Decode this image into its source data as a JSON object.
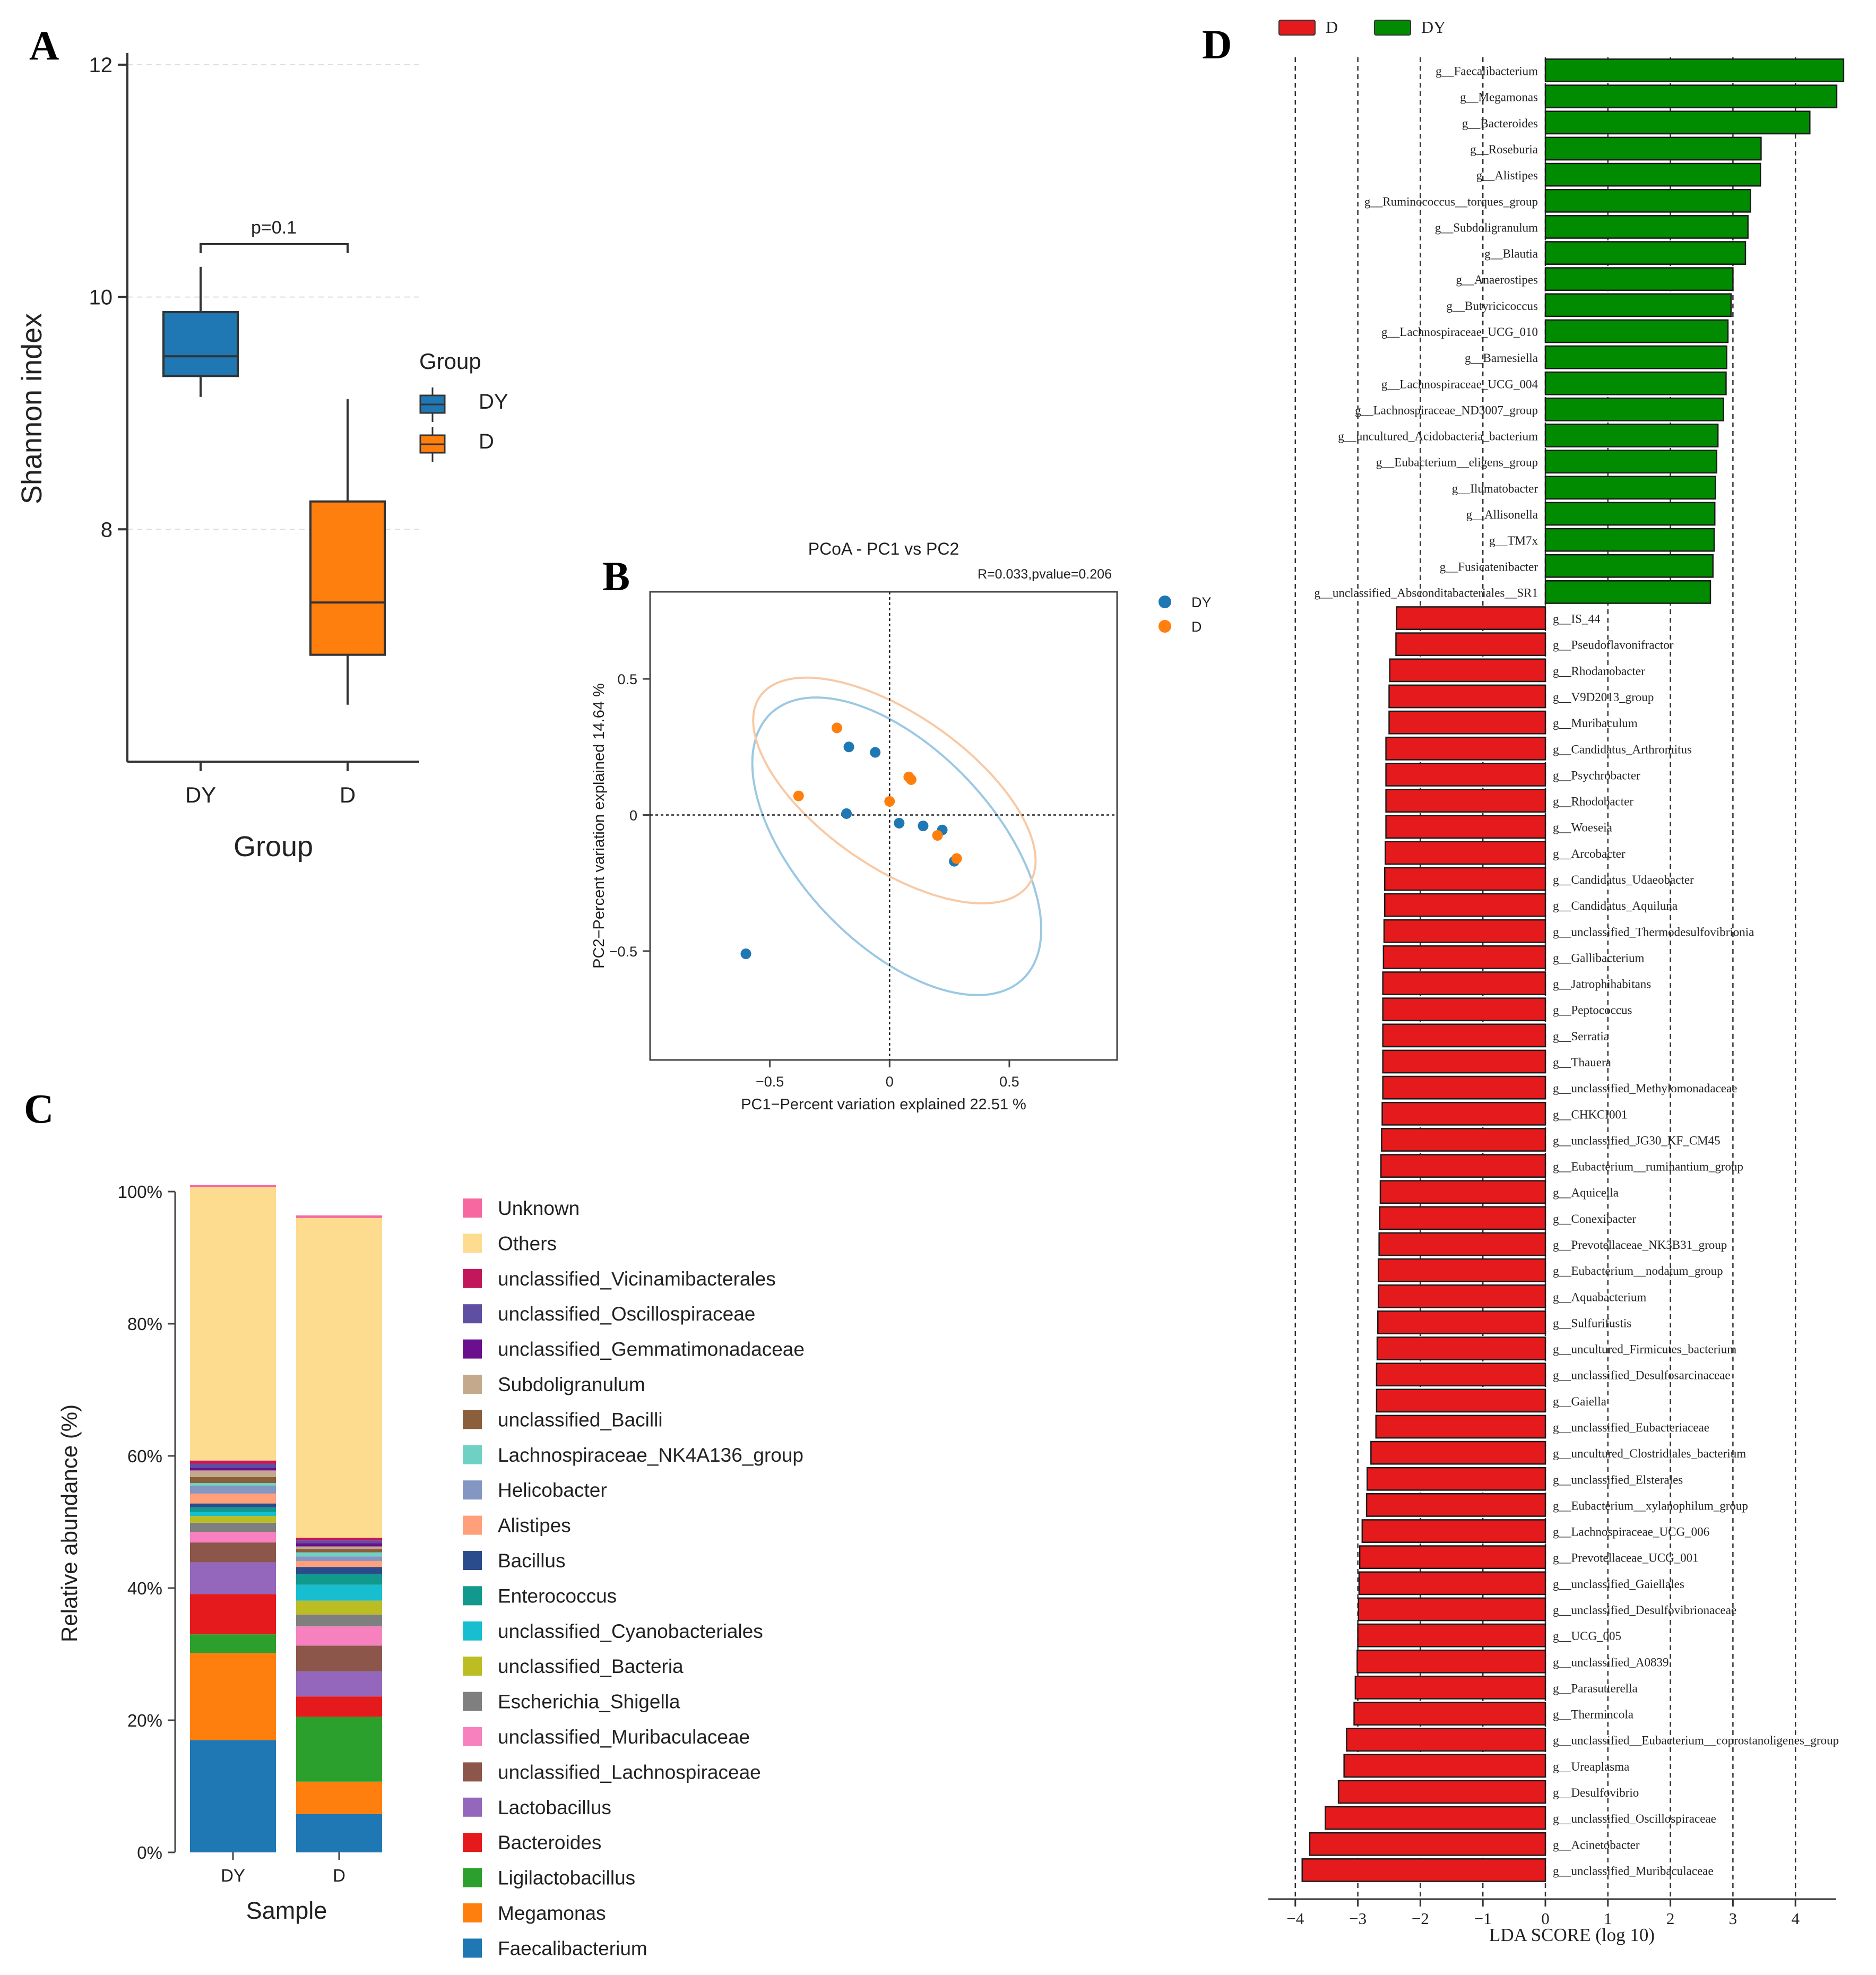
{
  "figure": {
    "panel_labels": [
      "A",
      "B",
      "C",
      "D"
    ]
  },
  "colors": {
    "DY": "#1f77b4",
    "D": "#ff7f0e",
    "lda_D": "#e41a1c",
    "lda_DY": "#008b00",
    "ellipse_DY": "#9cc8e3",
    "ellipse_D": "#f8c9a4"
  },
  "chart_data": [
    {
      "panel": "A",
      "type": "box",
      "ylabel": "Shannon index",
      "xlabel": "Group",
      "ylim": [
        6.0,
        12.1
      ],
      "yticks": [
        "8",
        "10",
        "12"
      ],
      "grid": "horizontal dashed",
      "categories": [
        "DY",
        "D"
      ],
      "legend_title": "Group",
      "legend_labels": [
        "DY",
        "D"
      ],
      "boxes": [
        {
          "group": "DY",
          "whisker_low": 9.14,
          "q1": 9.32,
          "median": 9.49,
          "q3": 9.87,
          "whisker_high": 10.26
        },
        {
          "group": "D",
          "whisker_low": 6.49,
          "q1": 6.92,
          "median": 7.37,
          "q3": 8.24,
          "whisker_high": 9.12
        }
      ],
      "annotation": "p=0.1"
    },
    {
      "panel": "B",
      "type": "scatter",
      "title": "PCoA - PC1 vs PC2",
      "subtitle": "R=0.033,pvalue=0.206",
      "xlabel": "PC1−Percent variation explained 22.51 %",
      "ylabel": "PC2−Percent variation explained 14.64 %",
      "xlim": [
        -1.0,
        0.95
      ],
      "ylim": [
        -0.9,
        0.82
      ],
      "xticks": [
        "−0.5",
        "0",
        "0.5"
      ],
      "yticks": [
        "−0.5",
        "0",
        "0.5"
      ],
      "legend_labels": [
        "DY",
        "D"
      ],
      "series": [
        {
          "name": "DY",
          "points": [
            [
              -0.17,
              0.25
            ],
            [
              -0.06,
              0.23
            ],
            [
              -0.18,
              0.005
            ],
            [
              0.04,
              -0.03
            ],
            [
              0.14,
              -0.04
            ],
            [
              0.22,
              -0.055
            ],
            [
              0.27,
              -0.17
            ],
            [
              -0.6,
              -0.51
            ]
          ]
        },
        {
          "name": "D",
          "points": [
            [
              -0.22,
              0.32
            ],
            [
              0.08,
              0.14
            ],
            [
              0.09,
              0.13
            ],
            [
              -0.38,
              0.07
            ],
            [
              0.0,
              0.05
            ],
            [
              0.2,
              -0.075
            ],
            [
              0.28,
              -0.16
            ]
          ]
        }
      ],
      "ellipses": [
        {
          "name": "DY",
          "center": [
            0.03,
            -0.115
          ],
          "semi_major": 0.72,
          "semi_minor": 0.38,
          "angle_deg": -40
        },
        {
          "name": "D",
          "center": [
            0.02,
            0.09
          ],
          "semi_major": 0.66,
          "semi_minor": 0.29,
          "angle_deg": -30
        }
      ]
    },
    {
      "panel": "C",
      "type": "stacked_bar",
      "ylabel": "Relative abundance (%)",
      "xlabel": "Sample",
      "categories": [
        "DY",
        "D"
      ],
      "ylim": [
        0,
        100
      ],
      "yticks": [
        "0%",
        "20%",
        "40%",
        "60%",
        "80%",
        "100%"
      ],
      "series": [
        {
          "name": "Faecalibacterium",
          "color": "#1f77b4",
          "values": [
            17.0,
            5.8
          ]
        },
        {
          "name": "Megamonas",
          "color": "#ff7f0e",
          "values": [
            13.2,
            4.9
          ]
        },
        {
          "name": "Ligilactobacillus",
          "color": "#2ca02c",
          "values": [
            2.8,
            9.8
          ]
        },
        {
          "name": "Bacteroides",
          "color": "#e41a1c",
          "values": [
            6.1,
            3.1
          ]
        },
        {
          "name": "Lactobacillus",
          "color": "#9467bd",
          "values": [
            4.8,
            3.8
          ]
        },
        {
          "name": "unclassified_Lachnospiraceae",
          "color": "#8c564b",
          "values": [
            3.0,
            3.9
          ]
        },
        {
          "name": "unclassified_Muribaculaceae",
          "color": "#f781bf",
          "values": [
            1.6,
            2.9
          ]
        },
        {
          "name": "Escherichia_Shigella",
          "color": "#7f7f7f",
          "values": [
            1.4,
            1.8
          ]
        },
        {
          "name": "unclassified_Bacteria",
          "color": "#bcbd22",
          "values": [
            1.0,
            2.1
          ]
        },
        {
          "name": "unclassified_Cyanobacteriales",
          "color": "#17becf",
          "values": [
            0.6,
            2.4
          ]
        },
        {
          "name": "Enterococcus",
          "color": "#11998e",
          "values": [
            0.7,
            1.6
          ]
        },
        {
          "name": "Bacillus",
          "color": "#2b4c8c",
          "values": [
            0.6,
            1.1
          ]
        },
        {
          "name": "Alistipes",
          "color": "#ffa07a",
          "values": [
            1.5,
            0.9
          ]
        },
        {
          "name": "Helicobacter",
          "color": "#8496c2",
          "values": [
            1.2,
            0.7
          ]
        },
        {
          "name": "Lachnospiraceae_NK4A136_group",
          "color": "#6fd1c4",
          "values": [
            0.4,
            0.6
          ]
        },
        {
          "name": "unclassified_Bacilli",
          "color": "#8b5e3c",
          "values": [
            0.9,
            0.5
          ]
        },
        {
          "name": "Subdoligranulum",
          "color": "#c4a98c",
          "values": [
            1.0,
            0.4
          ]
        },
        {
          "name": "unclassified_Gemmatimonadaceae",
          "color": "#6a0f8e",
          "values": [
            0.4,
            0.5
          ]
        },
        {
          "name": "unclassified_Oscillospiraceae",
          "color": "#5e4fa2",
          "values": [
            0.6,
            0.4
          ]
        },
        {
          "name": "unclassified_Vicinamibacterales",
          "color": "#c2185b",
          "values": [
            0.5,
            0.4
          ]
        },
        {
          "name": "Others",
          "color": "#fddc8f",
          "values": [
            41.4,
            48.4
          ]
        },
        {
          "name": "Unknown",
          "color": "#f768a1",
          "values": [
            0.3,
            0.4
          ]
        }
      ]
    },
    {
      "panel": "D",
      "type": "horizontal_bar",
      "xlabel": "LDA SCORE (log 10)",
      "xlim": [
        -4.1,
        4.8
      ],
      "xticks": [
        "−4",
        "−3",
        "−2",
        "−1",
        "0",
        "1",
        "2",
        "3",
        "4"
      ],
      "legend_labels": [
        "D",
        "DY"
      ],
      "bars": [
        {
          "name": "g__Faecalibacterium",
          "group": "DY",
          "value": 4.77
        },
        {
          "name": "g__Megamonas",
          "group": "DY",
          "value": 4.66
        },
        {
          "name": "g__Bacteroides",
          "group": "DY",
          "value": 4.23
        },
        {
          "name": "g__Roseburia",
          "group": "DY",
          "value": 3.45
        },
        {
          "name": "g__Alistipes",
          "group": "DY",
          "value": 3.44
        },
        {
          "name": "g__Ruminococcus__torques_group",
          "group": "DY",
          "value": 3.28
        },
        {
          "name": "g__Subdoligranulum",
          "group": "DY",
          "value": 3.24
        },
        {
          "name": "g__Blautia",
          "group": "DY",
          "value": 3.2
        },
        {
          "name": "g__Anaerostipes",
          "group": "DY",
          "value": 3.0
        },
        {
          "name": "g__Butyricicoccus",
          "group": "DY",
          "value": 2.97
        },
        {
          "name": "g__Lachnospiraceae_UCG_010",
          "group": "DY",
          "value": 2.92
        },
        {
          "name": "g__Barnesiella",
          "group": "DY",
          "value": 2.9
        },
        {
          "name": "g__Lachnospiraceae_UCG_004",
          "group": "DY",
          "value": 2.89
        },
        {
          "name": "g__Lachnospiraceae_ND3007_group",
          "group": "DY",
          "value": 2.85
        },
        {
          "name": "g__uncultured_Acidobacteria_bacterium",
          "group": "DY",
          "value": 2.76
        },
        {
          "name": "g__Eubacterium__eligens_group",
          "group": "DY",
          "value": 2.74
        },
        {
          "name": "g__Ilumatobacter",
          "group": "DY",
          "value": 2.72
        },
        {
          "name": "g__Allisonella",
          "group": "DY",
          "value": 2.71
        },
        {
          "name": "g__TM7x",
          "group": "DY",
          "value": 2.7
        },
        {
          "name": "g__Fusicatenibacter",
          "group": "DY",
          "value": 2.68
        },
        {
          "name": "g__unclassified_Absconditabacteriales__SR1",
          "group": "DY",
          "value": 2.64
        },
        {
          "name": "g__IS_44",
          "group": "D",
          "value": -2.38
        },
        {
          "name": "g__Pseudoflavonifractor",
          "group": "D",
          "value": -2.39
        },
        {
          "name": "g__Rhodanobacter",
          "group": "D",
          "value": -2.49
        },
        {
          "name": "g__V9D2013_group",
          "group": "D",
          "value": -2.5
        },
        {
          "name": "g__Muribaculum",
          "group": "D",
          "value": -2.5
        },
        {
          "name": "g__Candidatus_Arthromitus",
          "group": "D",
          "value": -2.55
        },
        {
          "name": "g__Psychrobacter",
          "group": "D",
          "value": -2.55
        },
        {
          "name": "g__Rhodobacter",
          "group": "D",
          "value": -2.55
        },
        {
          "name": "g__Woeseia",
          "group": "D",
          "value": -2.55
        },
        {
          "name": "g__Arcobacter",
          "group": "D",
          "value": -2.56
        },
        {
          "name": "g__Candidatus_Udaeobacter",
          "group": "D",
          "value": -2.57
        },
        {
          "name": "g__Candidatus_Aquiluna",
          "group": "D",
          "value": -2.57
        },
        {
          "name": "g__unclassified_Thermodesulfovibrionia",
          "group": "D",
          "value": -2.58
        },
        {
          "name": "g__Gallibacterium",
          "group": "D",
          "value": -2.59
        },
        {
          "name": "g__Jatrophihabitans",
          "group": "D",
          "value": -2.6
        },
        {
          "name": "g__Peptococcus",
          "group": "D",
          "value": -2.6
        },
        {
          "name": "g__Serratia",
          "group": "D",
          "value": -2.6
        },
        {
          "name": "g__Thauera",
          "group": "D",
          "value": -2.6
        },
        {
          "name": "g__unclassified_Methylomonadaceae",
          "group": "D",
          "value": -2.6
        },
        {
          "name": "g__CHKCI001",
          "group": "D",
          "value": -2.61
        },
        {
          "name": "g__unclassified_JG30_KF_CM45",
          "group": "D",
          "value": -2.62
        },
        {
          "name": "g__Eubacterium__ruminantium_group",
          "group": "D",
          "value": -2.63
        },
        {
          "name": "g__Aquicella",
          "group": "D",
          "value": -2.64
        },
        {
          "name": "g__Conexibacter",
          "group": "D",
          "value": -2.65
        },
        {
          "name": "g__Prevotellaceae_NK3B31_group",
          "group": "D",
          "value": -2.66
        },
        {
          "name": "g__Eubacterium__nodatum_group",
          "group": "D",
          "value": -2.67
        },
        {
          "name": "g__Aquabacterium",
          "group": "D",
          "value": -2.67
        },
        {
          "name": "g__Sulfurifustis",
          "group": "D",
          "value": -2.68
        },
        {
          "name": "g__uncultured_Firmicutes_bacterium",
          "group": "D",
          "value": -2.69
        },
        {
          "name": "g__unclassified_Desulfosarcinaceae",
          "group": "D",
          "value": -2.7
        },
        {
          "name": "g__Gaiella",
          "group": "D",
          "value": -2.7
        },
        {
          "name": "g__unclassified_Eubacteriaceae",
          "group": "D",
          "value": -2.71
        },
        {
          "name": "g__uncultured_Clostridiales_bacterium",
          "group": "D",
          "value": -2.79
        },
        {
          "name": "g__unclassified_Elsterales",
          "group": "D",
          "value": -2.85
        },
        {
          "name": "g__Eubacterium__xylanophilum_group",
          "group": "D",
          "value": -2.86
        },
        {
          "name": "g__Lachnospiraceae_UCG_006",
          "group": "D",
          "value": -2.93
        },
        {
          "name": "g__Prevotellaceae_UCG_001",
          "group": "D",
          "value": -2.97
        },
        {
          "name": "g__unclassified_Gaiellales",
          "group": "D",
          "value": -2.98
        },
        {
          "name": "g__unclassified_Desulfovibrionaceae",
          "group": "D",
          "value": -2.99
        },
        {
          "name": "g__UCG_005",
          "group": "D",
          "value": -3.0
        },
        {
          "name": "g__unclassified_A0839",
          "group": "D",
          "value": -3.01
        },
        {
          "name": "g__Parasutterella",
          "group": "D",
          "value": -3.04
        },
        {
          "name": "g__Thermincola",
          "group": "D",
          "value": -3.06
        },
        {
          "name": "g__unclassified__Eubacterium__coprostanoligenes_group",
          "group": "D",
          "value": -3.18
        },
        {
          "name": "g__Ureaplasma",
          "group": "D",
          "value": -3.22
        },
        {
          "name": "g__Desulfovibrio",
          "group": "D",
          "value": -3.31
        },
        {
          "name": "g__unclassified_Oscillospiraceae",
          "group": "D",
          "value": -3.52
        },
        {
          "name": "g__Acinetobacter",
          "group": "D",
          "value": -3.77
        },
        {
          "name": "g__unclassified_Muribaculaceae",
          "group": "D",
          "value": -3.89
        }
      ]
    }
  ]
}
